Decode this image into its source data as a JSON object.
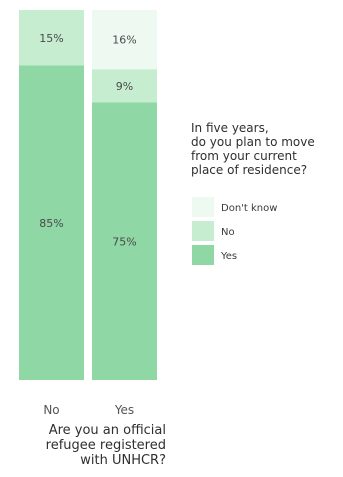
{
  "chart_data": {
    "type": "bar",
    "stacked": true,
    "orientation": "vertical",
    "categories": [
      "No",
      "Yes"
    ],
    "series": [
      {
        "name": "Yes",
        "values": [
          85,
          75
        ],
        "color": "#8fd7a4"
      },
      {
        "name": "No",
        "values": [
          15,
          9
        ],
        "color": "#c6edd0"
      },
      {
        "name": "Don't know",
        "values": [
          0,
          16
        ],
        "color": "#eefaf1"
      }
    ],
    "value_labels": {
      "No": [
        "85%",
        "15%",
        ""
      ],
      "Yes": [
        "75%",
        "9%",
        "16%"
      ]
    },
    "ylim": [
      0,
      100
    ],
    "grid": false,
    "xlabel_lines": [
      "Are you an official",
      "refugee registered",
      "with UNHCR?"
    ],
    "legend": {
      "position": "right",
      "title_lines": [
        "In five years,",
        "do you plan to move",
        "from your current",
        "place of residence?"
      ],
      "entries": [
        {
          "label": "Don't know",
          "color": "#eefaf1"
        },
        {
          "label": "No",
          "color": "#c6edd0"
        },
        {
          "label": "Yes",
          "color": "#8fd7a4"
        }
      ]
    }
  }
}
